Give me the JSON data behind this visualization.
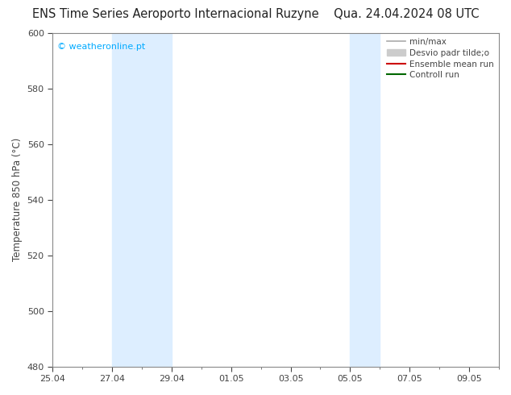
{
  "title_left": "ENS Time Series Aeroporto Internacional Ruzyne",
  "title_right": "Qua. 24.04.2024 08 UTC",
  "ylabel": "Temperature 850 hPa (°C)",
  "watermark": "© weatheronline.pt",
  "watermark_color": "#00aaff",
  "ylim": [
    480,
    600
  ],
  "yticks": [
    480,
    500,
    520,
    540,
    560,
    580,
    600
  ],
  "xlim": [
    0,
    15
  ],
  "x_tick_labels": [
    "25.04",
    "27.04",
    "29.04",
    "01.05",
    "03.05",
    "05.05",
    "07.05",
    "09.05"
  ],
  "x_tick_positions": [
    0,
    2,
    4,
    6,
    8,
    10,
    12,
    14
  ],
  "shaded_bands": [
    {
      "xstart": 2,
      "xend": 4
    },
    {
      "xstart": 10,
      "xend": 11
    }
  ],
  "shade_color": "#ddeeff",
  "background_color": "#ffffff",
  "legend_items": [
    {
      "label": "min/max",
      "color": "#aaaaaa",
      "lw": 1.2,
      "linestyle": "-",
      "type": "line"
    },
    {
      "label": "Desvio padr tilde;o",
      "color": "#cccccc",
      "lw": 8,
      "linestyle": "-",
      "type": "band"
    },
    {
      "label": "Ensemble mean run",
      "color": "#cc0000",
      "lw": 1.5,
      "linestyle": "-",
      "type": "line"
    },
    {
      "label": "Controll run",
      "color": "#006600",
      "lw": 1.5,
      "linestyle": "-",
      "type": "line"
    }
  ],
  "border_color": "#888888",
  "tick_color": "#444444",
  "title_fontsize": 10.5,
  "label_fontsize": 8.5,
  "tick_fontsize": 8,
  "legend_fontsize": 7.5
}
